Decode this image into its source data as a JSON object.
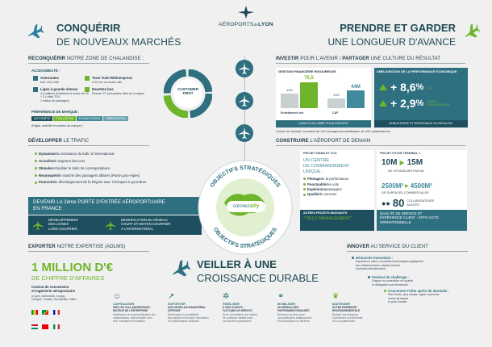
{
  "brand": {
    "name": "AÉROPORTS",
    "suffix": "de",
    "city": "LYON"
  },
  "header_left": {
    "title": "CONQUÉRIR",
    "subtitle": "DE NOUVEAUX MARCHÉS"
  },
  "header_right": {
    "title": "PRENDRE ET GARDER",
    "subtitle": "UNE LONGUEUR D'AVANCE"
  },
  "reconquer": {
    "heading_bold": "RECONQUÉRIR",
    "heading_rest": " NOTRE ZONE DE CHALANDISE :",
    "access_label": "ACCESSIBILITÉ :",
    "access_items": [
      {
        "title": "Autoroutes",
        "detail": "A42, A43, A46"
      },
      {
        "title": "Tram Train Rhônexpress",
        "detail": "à 30 min du centre-ville"
      },
      {
        "title": "Ligne à grande vitesse",
        "detail": "4,4 millions d'habitants à moins de 2h\n+ 21 villes TGV\n1 million de passagers"
      },
      {
        "title": "Navettes bus",
        "detail": "Réseau TC principales villes de la région"
      }
    ],
    "market_label": "PRÉFÉRENCE DE MARQUE :",
    "market_steps": [
      "NOTORIÉTÉ",
      "ÉVALUATION",
      "PLANIFICATION",
      "RÉSERVATION"
    ],
    "market_note": "(Rigide, stabilité et contenu de marque )",
    "wheel_center": "CUSTOMER\nFIRST"
  },
  "develop": {
    "heading_bold": "DÉVELOPPER",
    "heading_rest": " LE TRAFIC",
    "items": [
      {
        "bold": "Dynamiser",
        "rest": " la croissance du trafic à l'international"
      },
      {
        "bold": "Accroître",
        "rest": " le segment low-cost"
      },
      {
        "bold": "Stimuler",
        "rest": " et faciliter le trafic de correspondance"
      },
      {
        "bold": "Reconquérir",
        "rest": " le marché des passagers affaires (Paris-Lyon-Alpes)"
      },
      {
        "bold": "Pourvoire",
        "rest": " le développement de la Région avec l'Aéroport à Lyon-Bron"
      }
    ],
    "banner": "DEVENIR LA 2ème PORTE D'ENTRÉE AÉROPORTUAIRE\nEN FRANCE",
    "sub1": "DÉVELOPPEMENT\nDES LIGNES\nLONG-COURRIER",
    "sub2": "DENSIFICATION DU RÉSEAU\nCOURT ET MOYEN-COURRIER\nÀ L'INTERNATIONAL"
  },
  "invest": {
    "heading_bold": "INVESTIR",
    "heading_rest": " POUR L'AVENIR / ",
    "heading_bold2": "PARTAGER",
    "heading_rest2": " UNE CULTURE DU RÉSULTAT",
    "fin_label": "GESTION FINANCIÈRE RIGOUREUSE",
    "fin_bars": [
      {
        "label": "Endettement net",
        "val_a": "",
        "val_b": "75,5"
      },
      {
        "label": "CAF",
        "val_a": "",
        "val_b": "44M"
      }
    ],
    "fin_small": [
      "60M",
      "30M"
    ],
    "fin_caption": "CASH FLOW LIBRE POUR INVESTIR",
    "perf_label": "AMÉLIORATION DE LA PERFORMANCE ÉCONOMIQUE",
    "perf_items": [
      {
        "value": "+ 8,6",
        "unit": "%",
        "label": "CA"
      },
      {
        "value": "+ 2,9",
        "unit": "%",
        "label": "TRAFIC\nPASSAGERS/AN"
      }
    ],
    "perf_caption": "ROBUSTESSE ET RÉSISTANCE DU RÉSULTAT",
    "culture_note": "Culture du résultat, formation de 100 managers/sensibilisation de 400 collaborateurs"
  },
  "build": {
    "heading_bold": "CONSTRUIRE",
    "heading_rest": " L'AÉROPORT DE DEMAIN",
    "sigma_label": "PROJET SIGMA ET CCO",
    "cco_text": "UN CENTRE\nDE COMMANDEMENT\nUNIQUE :",
    "cco_items": [
      {
        "bold": "Pilotage",
        "rest": " de la performance"
      },
      {
        "bold": "Ponctualité",
        "rest": " des vols"
      },
      {
        "bold": "Expérience",
        "rest": " passagers"
      },
      {
        "bold": "Qualité",
        "rest": " de services"
      }
    ],
    "other_label": "AUTRES PROJETS INNOVANTS",
    "yield": "\"YIELD MANAGEMENT\"",
    "t1_label": "PROJET FUTUR TERMINAL 1",
    "t1_big1": "10M",
    "t1_big2": "15M",
    "t1_caption": "DE VOYAGEURS PAR AN",
    "t1_area1": "2500M²",
    "t1_area2": "4500M²",
    "t1_area_caption": "DE SURFACES COMMERCIALES",
    "t1_staff": "80",
    "t1_staff_caption": "COLLABORATEURS\nAUDITÉS",
    "quality_banner": "QUALITÉ DE SERVICE ET\nEXPÉRIENCE CLIENT - EFFICACITÉ\nOPÉRATIONNELLE"
  },
  "center": {
    "top_ring": "OBJECTIFS STRATÉGIQUES",
    "bottom_ring": "OBJECTIFS STRATÉGIQUES",
    "logo": "connect",
    "logo_amp": "&fly"
  },
  "export": {
    "heading_bold": "EXPORTER",
    "heading_rest": " NOTRE EXPERTISE (ADLMS)",
    "big": "1 MILLION D'€",
    "big_sub": "DE CHIFFRE D'AFFAIRES",
    "contract_label": "Contrat de concession\net ingénierie aéroportuaire",
    "contract_detail": "à Lyon, Dubrovnik, Congo,\nHongrie, Tunisie, Montpellier, Italie..."
  },
  "innovate": {
    "heading_bold": "INNOVER",
    "heading_rest": " AU SERVICE DU CLIENT",
    "steps": [
      {
        "title": "Démarche innovation :",
        "text": "Expérience client, nouvelles technologies appliquées\naux infrastructures, capital humain,\nincubateur/accélérateur"
      },
      {
        "title": "Festival de challenge :",
        "text": "Gagner ou consolider en qualité\net délégation aux tendances"
      },
      {
        "title": "Concentrer l'hôte après du domicile :",
        "text": "Plus fluide, plus simple, hyper connecté,\nmoins stressant\net plus humain"
      }
    ]
  },
  "durable": {
    "line1": "VEILLER À UNE",
    "line2": "CROISSANCE DURABLE"
  },
  "pillars": [
    {
      "title": "CAPITALISER",
      "sub": "SUR LES COLLABORATEURS :\nMOTEUR DE L'ENTREPRISE",
      "text": "Mobilisation et responsabilisation des\ncollaborateurs, transversalité, bien-\nêtre, innovation et formation."
    },
    {
      "title": "EXPORTER",
      "sub": "SUR UN RELAIS MANAGÉRIAL\nOFFENSIF",
      "text": "Développer la compétitivité\ndes équipes et favoriser l'innovation\net la performance collective."
    },
    {
      "title": "FIDÉLISER",
      "sub": "À NOS CLIENTS :\nCLÉ DANS UN SERVICE",
      "text": "Créer et entretenir une relation\nde confiance durable avec\nnos clients et partenaires."
    },
    {
      "title": "MOBILISER",
      "sub": "UN RÉSEAU DES\nPARTENAIRES ENGAGÉS",
      "text": "Renforcer les liens avec\nnos partenaires institutionnels\net économiques du territoire."
    },
    {
      "title": "MAÎTRISER",
      "sub": "NOTRE EMPREINTE\nENVIRONNEMENTALE",
      "text": "Réduire nos émissions\net préserver la biodiversité\nsur nos plateformes."
    }
  ]
}
